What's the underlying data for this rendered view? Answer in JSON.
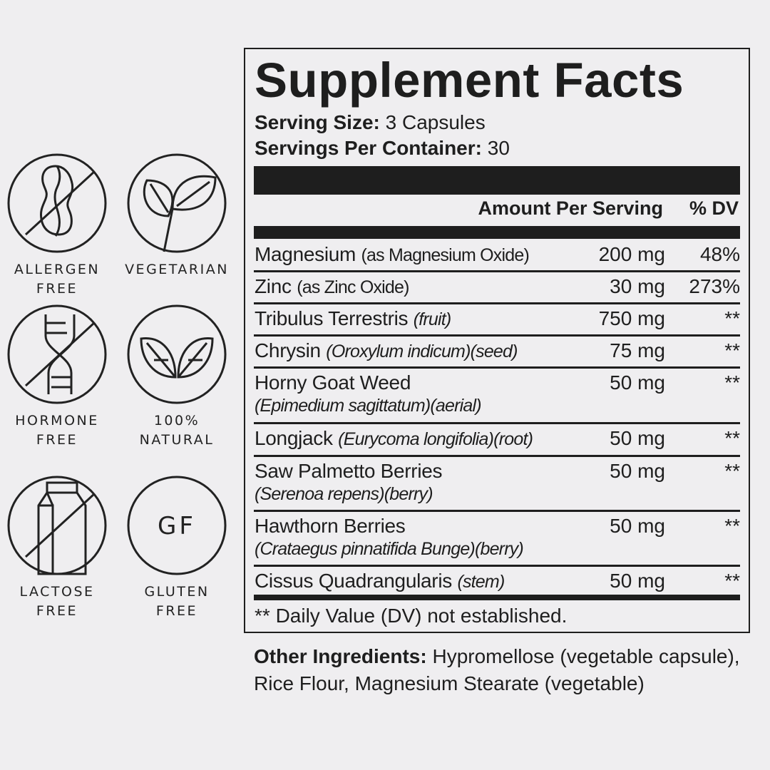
{
  "badges": [
    {
      "icon": "peanut-crossed-icon",
      "line1": "ALLERGEN",
      "line2": "FREE"
    },
    {
      "icon": "sprout-icon",
      "line1": "VEGETARIAN",
      "line2": ""
    },
    {
      "icon": "dna-crossed-icon",
      "line1": "HORMONE",
      "line2": "FREE"
    },
    {
      "icon": "leaves-icon",
      "line1": "100%",
      "line2": "NATURAL"
    },
    {
      "icon": "milk-carton-crossed-icon",
      "line1": "LACTOSE",
      "line2": "FREE"
    },
    {
      "icon": "gf-icon",
      "glyph": "GF",
      "line1": "GLUTEN",
      "line2": "FREE"
    }
  ],
  "facts": {
    "title": "Supplement Facts",
    "serving_size_label": "Serving Size:",
    "serving_size": "3 Capsules",
    "servings_label": "Servings Per Container:",
    "servings": "30",
    "amount_header": "Amount Per Serving",
    "dv_header": "% DV",
    "rows": [
      {
        "name": "Magnesium",
        "paren": "(as Magnesium Oxide)",
        "italic": "",
        "sub": "",
        "amount": "200 mg",
        "dv": "48%"
      },
      {
        "name": "Zinc",
        "paren": "(as Zinc Oxide)",
        "italic": "",
        "sub": "",
        "amount": "30 mg",
        "dv": "273%"
      },
      {
        "name": "Tribulus Terrestris",
        "paren": "",
        "italic": "(fruit)",
        "sub": "",
        "amount": "750 mg",
        "dv": "**"
      },
      {
        "name": "Chrysin",
        "paren": "",
        "italic": "(Oroxylum indicum)(seed)",
        "sub": "",
        "amount": "75 mg",
        "dv": "**"
      },
      {
        "name": "Horny Goat Weed",
        "paren": "",
        "italic": "",
        "sub": "(Epimedium sagittatum)(aerial)",
        "amount": "50 mg",
        "dv": "**"
      },
      {
        "name": "Longjack",
        "paren": "",
        "italic": "(Eurycoma longifolia)(root)",
        "sub": "",
        "amount": "50 mg",
        "dv": "**"
      },
      {
        "name": "Saw Palmetto Berries",
        "paren": "",
        "italic": "",
        "sub": "(Serenoa repens)(berry)",
        "amount": "50 mg",
        "dv": "**"
      },
      {
        "name": "Hawthorn Berries",
        "paren": "",
        "italic": "",
        "sub": "(Crataegus pinnatifida Bunge)(berry)",
        "amount": "50 mg",
        "dv": "**"
      },
      {
        "name": "Cissus Quadrangularis",
        "paren": "",
        "italic": "(stem)",
        "sub": "",
        "amount": "50 mg",
        "dv": "**"
      }
    ],
    "footnote": "** Daily Value (DV) not established."
  },
  "other": {
    "label": "Other Ingredients:",
    "text": "Hypromellose (vegetable capsule), Rice Flour, Magnesium Stearate (vegetable)"
  }
}
